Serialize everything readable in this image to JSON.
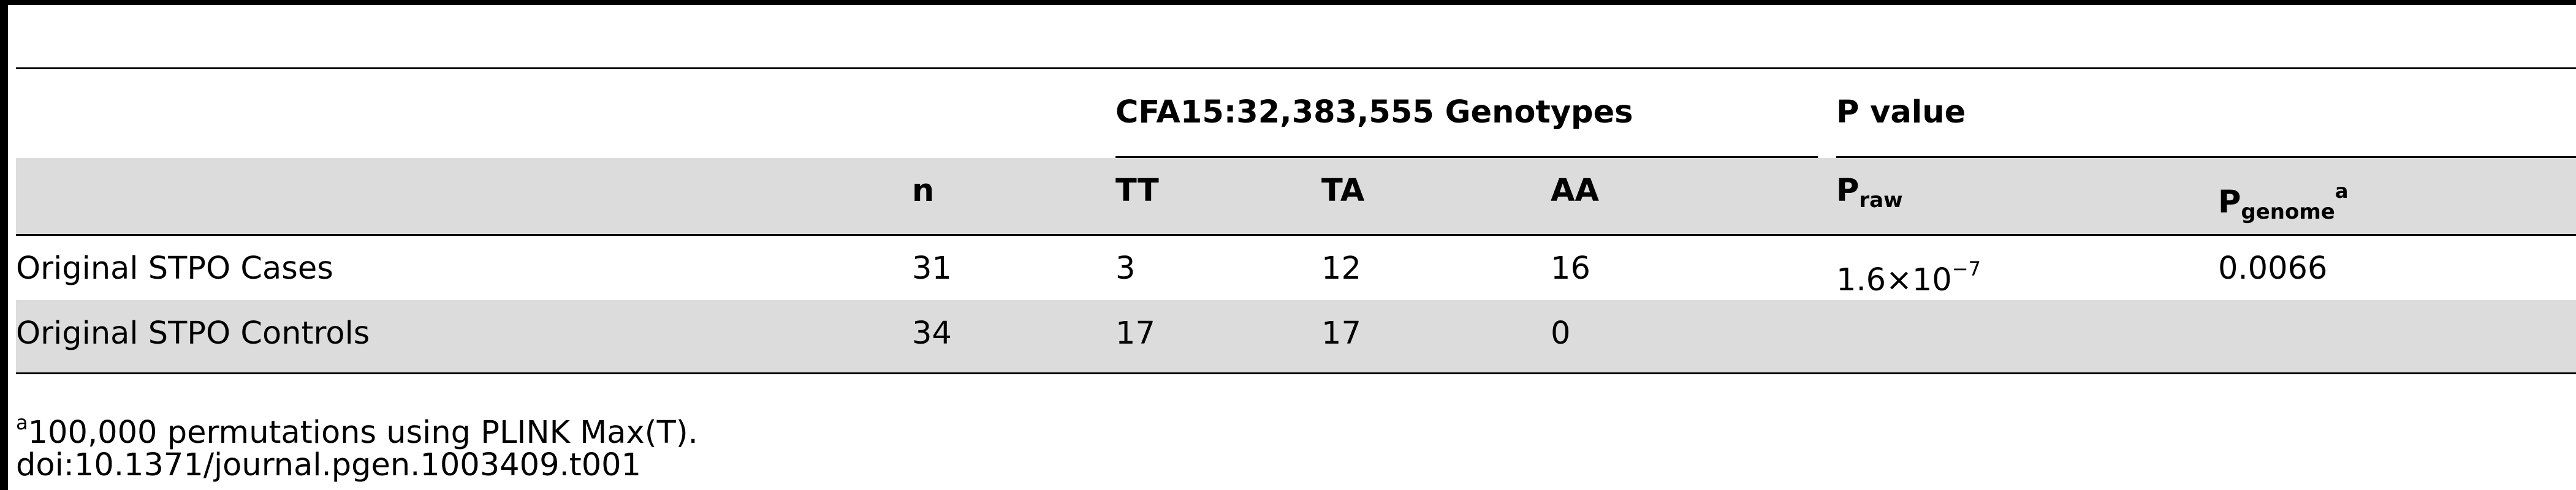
{
  "table": {
    "group_headers": {
      "genotypes": "CFA15:32,383,555 Genotypes",
      "p_value": "P value"
    },
    "columns": {
      "label": "",
      "n": "n",
      "tt": "TT",
      "ta": "TA",
      "aa": "AA",
      "p_raw_base": "P",
      "p_raw_sub": "raw",
      "p_genome_base": "P",
      "p_genome_sub": "genome",
      "p_genome_sup": "a"
    },
    "rows": [
      {
        "label": "Original STPO Cases",
        "n": "31",
        "tt": "3",
        "ta": "12",
        "aa": "16",
        "p_raw_mantissa": "1.6×10",
        "p_raw_exponent": "−7",
        "p_genome": "0.0066"
      },
      {
        "label": "Original STPO Controls",
        "n": "34",
        "tt": "17",
        "ta": "17",
        "aa": "0",
        "p_raw_mantissa": "",
        "p_raw_exponent": "",
        "p_genome": ""
      }
    ]
  },
  "footnotes": {
    "note_marker": "a",
    "note_text": "100,000 permutations using PLINK Max(T).",
    "doi": "doi:10.1371/journal.pgen.1003409.t001"
  }
}
